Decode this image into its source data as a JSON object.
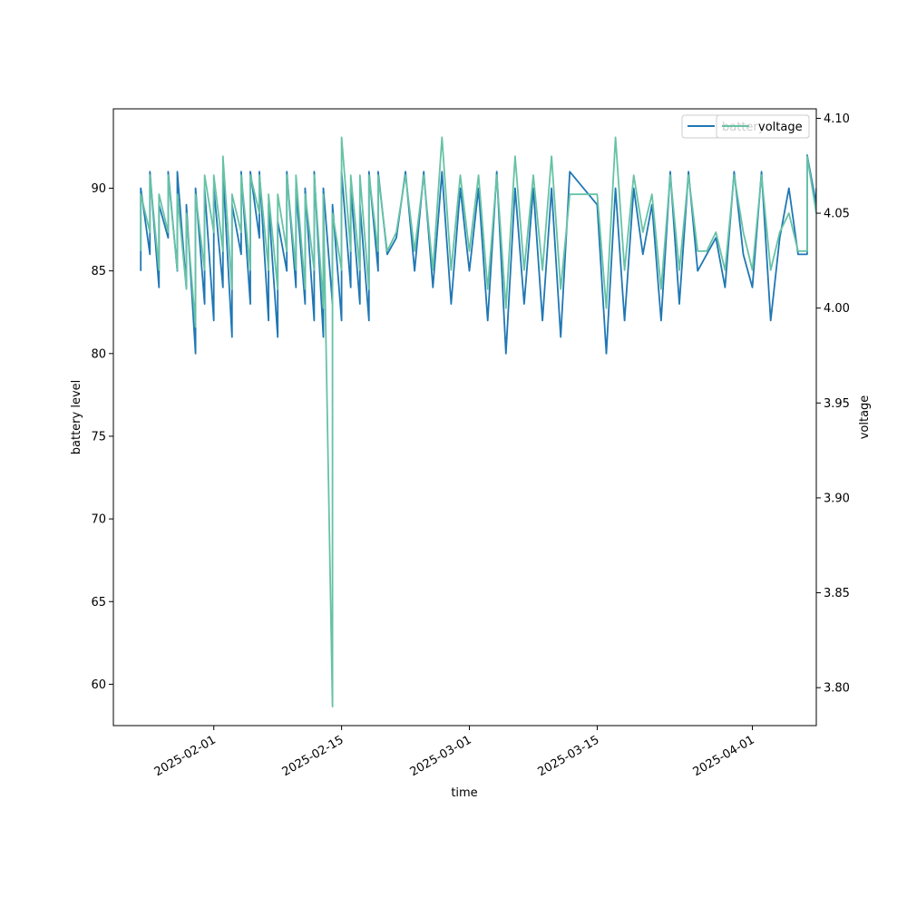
{
  "chart_data": {
    "type": "line",
    "xlabel": "time",
    "ylabel_left": "battery level",
    "ylabel_right": "voltage",
    "x_range": [
      "2025-01-21",
      "2025-04-08"
    ],
    "y_left_range": [
      57.5,
      94.8
    ],
    "y_right_range": [
      3.78,
      4.105
    ],
    "x_ticks": [
      "2025-02-01",
      "2025-02-15",
      "2025-03-01",
      "2025-03-15",
      "2025-04-01"
    ],
    "y_left_ticks": [
      60,
      65,
      70,
      75,
      80,
      85,
      90
    ],
    "y_right_ticks": [
      "3.80",
      "3.85",
      "3.90",
      "3.95",
      "4.00",
      "4.05",
      "4.10"
    ],
    "legend_position": "upper right",
    "series": [
      {
        "name": "battery",
        "axis": "left",
        "color": "#1f77b4",
        "points": [
          [
            "2025-01-24",
            85
          ],
          [
            "2025-01-24",
            90
          ],
          [
            "2025-01-25",
            86
          ],
          [
            "2025-01-25",
            91
          ],
          [
            "2025-01-26",
            84
          ],
          [
            "2025-01-26",
            89
          ],
          [
            "2025-01-27",
            87
          ],
          [
            "2025-01-27",
            91
          ],
          [
            "2025-01-28",
            85
          ],
          [
            "2025-01-28",
            91
          ],
          [
            "2025-01-29",
            84
          ],
          [
            "2025-01-29",
            89
          ],
          [
            "2025-01-30",
            80
          ],
          [
            "2025-01-30",
            90
          ],
          [
            "2025-01-31",
            83
          ],
          [
            "2025-01-31",
            90
          ],
          [
            "2025-02-01",
            82
          ],
          [
            "2025-02-01",
            90
          ],
          [
            "2025-02-02",
            84
          ],
          [
            "2025-02-02",
            91
          ],
          [
            "2025-02-03",
            81
          ],
          [
            "2025-02-03",
            89
          ],
          [
            "2025-02-04",
            86
          ],
          [
            "2025-02-04",
            91
          ],
          [
            "2025-02-05",
            83
          ],
          [
            "2025-02-05",
            91
          ],
          [
            "2025-02-06",
            87
          ],
          [
            "2025-02-06",
            91
          ],
          [
            "2025-02-07",
            82
          ],
          [
            "2025-02-07",
            89
          ],
          [
            "2025-02-08",
            81
          ],
          [
            "2025-02-08",
            88
          ],
          [
            "2025-02-09",
            85
          ],
          [
            "2025-02-09",
            91
          ],
          [
            "2025-02-10",
            84
          ],
          [
            "2025-02-10",
            90
          ],
          [
            "2025-02-11",
            83
          ],
          [
            "2025-02-11",
            90
          ],
          [
            "2025-02-12",
            82
          ],
          [
            "2025-02-12",
            91
          ],
          [
            "2025-02-13",
            81
          ],
          [
            "2025-02-13",
            90
          ],
          [
            "2025-02-14",
            83
          ],
          [
            "2025-02-14",
            89
          ],
          [
            "2025-02-15",
            82
          ],
          [
            "2025-02-15",
            91
          ],
          [
            "2025-02-16",
            84
          ],
          [
            "2025-02-16",
            90
          ],
          [
            "2025-02-17",
            83
          ],
          [
            "2025-02-17",
            89
          ],
          [
            "2025-02-18",
            82
          ],
          [
            "2025-02-18",
            91
          ],
          [
            "2025-02-19",
            85
          ],
          [
            "2025-02-19",
            91
          ],
          [
            "2025-02-20",
            86
          ],
          [
            "2025-02-21",
            87
          ],
          [
            "2025-02-22",
            91
          ],
          [
            "2025-02-23",
            85
          ],
          [
            "2025-02-24",
            91
          ],
          [
            "2025-02-25",
            84
          ],
          [
            "2025-02-26",
            91
          ],
          [
            "2025-02-27",
            83
          ],
          [
            "2025-02-28",
            90
          ],
          [
            "2025-03-01",
            85
          ],
          [
            "2025-03-02",
            90
          ],
          [
            "2025-03-03",
            82
          ],
          [
            "2025-03-04",
            91
          ],
          [
            "2025-03-05",
            80
          ],
          [
            "2025-03-06",
            90
          ],
          [
            "2025-03-07",
            83
          ],
          [
            "2025-03-08",
            90
          ],
          [
            "2025-03-09",
            82
          ],
          [
            "2025-03-10",
            90
          ],
          [
            "2025-03-11",
            81
          ],
          [
            "2025-03-12",
            91
          ],
          [
            "2025-03-15",
            89
          ],
          [
            "2025-03-16",
            80
          ],
          [
            "2025-03-17",
            90
          ],
          [
            "2025-03-18",
            82
          ],
          [
            "2025-03-19",
            90
          ],
          [
            "2025-03-20",
            86
          ],
          [
            "2025-03-21",
            89
          ],
          [
            "2025-03-22",
            82
          ],
          [
            "2025-03-23",
            91
          ],
          [
            "2025-03-24",
            83
          ],
          [
            "2025-03-25",
            91
          ],
          [
            "2025-03-26",
            85
          ],
          [
            "2025-03-27",
            86
          ],
          [
            "2025-03-28",
            87
          ],
          [
            "2025-03-29",
            84
          ],
          [
            "2025-03-30",
            91
          ],
          [
            "2025-03-31",
            86
          ],
          [
            "2025-04-01",
            84
          ],
          [
            "2025-04-02",
            91
          ],
          [
            "2025-04-03",
            82
          ],
          [
            "2025-04-04",
            87
          ],
          [
            "2025-04-05",
            90
          ],
          [
            "2025-04-06",
            86
          ],
          [
            "2025-04-07",
            86
          ],
          [
            "2025-04-07",
            92
          ],
          [
            "2025-04-08",
            89
          ],
          [
            "2025-04-08",
            90
          ]
        ]
      },
      {
        "name": "voltage",
        "axis": "right",
        "color": "#66c2a5",
        "points": [
          [
            "2025-01-24",
            4.03
          ],
          [
            "2025-01-24",
            4.06
          ],
          [
            "2025-01-25",
            4.04
          ],
          [
            "2025-01-25",
            4.07
          ],
          [
            "2025-01-26",
            4.02
          ],
          [
            "2025-01-26",
            4.06
          ],
          [
            "2025-01-27",
            4.04
          ],
          [
            "2025-01-27",
            4.07
          ],
          [
            "2025-01-28",
            4.02
          ],
          [
            "2025-01-28",
            4.06
          ],
          [
            "2025-01-29",
            4.01
          ],
          [
            "2025-01-29",
            4.05
          ],
          [
            "2025-01-30",
            3.99
          ],
          [
            "2025-01-30",
            4.06
          ],
          [
            "2025-01-31",
            4.02
          ],
          [
            "2025-01-31",
            4.07
          ],
          [
            "2025-02-01",
            4.04
          ],
          [
            "2025-02-01",
            4.07
          ],
          [
            "2025-02-02",
            4.03
          ],
          [
            "2025-02-02",
            4.08
          ],
          [
            "2025-02-03",
            4.01
          ],
          [
            "2025-02-03",
            4.06
          ],
          [
            "2025-02-04",
            4.04
          ],
          [
            "2025-02-04",
            4.07
          ],
          [
            "2025-02-05",
            4.02
          ],
          [
            "2025-02-05",
            4.07
          ],
          [
            "2025-02-06",
            4.05
          ],
          [
            "2025-02-06",
            4.07
          ],
          [
            "2025-02-07",
            4.02
          ],
          [
            "2025-02-07",
            4.06
          ],
          [
            "2025-02-08",
            4.01
          ],
          [
            "2025-02-08",
            4.06
          ],
          [
            "2025-02-09",
            4.03
          ],
          [
            "2025-02-09",
            4.07
          ],
          [
            "2025-02-10",
            4.02
          ],
          [
            "2025-02-10",
            4.07
          ],
          [
            "2025-02-11",
            4.01
          ],
          [
            "2025-02-11",
            4.06
          ],
          [
            "2025-02-12",
            4.02
          ],
          [
            "2025-02-12",
            4.07
          ],
          [
            "2025-02-13",
            4.0
          ],
          [
            "2025-02-13",
            4.06
          ],
          [
            "2025-02-14",
            3.79
          ],
          [
            "2025-02-14",
            4.05
          ],
          [
            "2025-02-15",
            4.02
          ],
          [
            "2025-02-15",
            4.09
          ],
          [
            "2025-02-16",
            4.03
          ],
          [
            "2025-02-16",
            4.07
          ],
          [
            "2025-02-17",
            4.02
          ],
          [
            "2025-02-17",
            4.07
          ],
          [
            "2025-02-18",
            4.01
          ],
          [
            "2025-02-18",
            4.07
          ],
          [
            "2025-02-19",
            4.03
          ],
          [
            "2025-02-19",
            4.07
          ],
          [
            "2025-02-20",
            4.03
          ],
          [
            "2025-02-21",
            4.04
          ],
          [
            "2025-02-22",
            4.07
          ],
          [
            "2025-02-23",
            4.03
          ],
          [
            "2025-02-24",
            4.07
          ],
          [
            "2025-02-25",
            4.02
          ],
          [
            "2025-02-26",
            4.09
          ],
          [
            "2025-02-27",
            4.02
          ],
          [
            "2025-02-28",
            4.07
          ],
          [
            "2025-03-01",
            4.03
          ],
          [
            "2025-03-02",
            4.07
          ],
          [
            "2025-03-03",
            4.01
          ],
          [
            "2025-03-04",
            4.07
          ],
          [
            "2025-03-05",
            4.0
          ],
          [
            "2025-03-06",
            4.08
          ],
          [
            "2025-03-07",
            4.02
          ],
          [
            "2025-03-08",
            4.07
          ],
          [
            "2025-03-09",
            4.02
          ],
          [
            "2025-03-10",
            4.08
          ],
          [
            "2025-03-11",
            4.01
          ],
          [
            "2025-03-12",
            4.06
          ],
          [
            "2025-03-15",
            4.06
          ],
          [
            "2025-03-16",
            4.0
          ],
          [
            "2025-03-17",
            4.09
          ],
          [
            "2025-03-18",
            4.02
          ],
          [
            "2025-03-19",
            4.07
          ],
          [
            "2025-03-20",
            4.04
          ],
          [
            "2025-03-21",
            4.06
          ],
          [
            "2025-03-22",
            4.01
          ],
          [
            "2025-03-23",
            4.07
          ],
          [
            "2025-03-24",
            4.02
          ],
          [
            "2025-03-25",
            4.07
          ],
          [
            "2025-03-26",
            4.03
          ],
          [
            "2025-03-27",
            4.03
          ],
          [
            "2025-03-28",
            4.04
          ],
          [
            "2025-03-29",
            4.02
          ],
          [
            "2025-03-30",
            4.07
          ],
          [
            "2025-03-31",
            4.04
          ],
          [
            "2025-04-01",
            4.02
          ],
          [
            "2025-04-02",
            4.07
          ],
          [
            "2025-04-03",
            4.02
          ],
          [
            "2025-04-04",
            4.04
          ],
          [
            "2025-04-05",
            4.05
          ],
          [
            "2025-04-06",
            4.03
          ],
          [
            "2025-04-07",
            4.03
          ],
          [
            "2025-04-07",
            4.08
          ],
          [
            "2025-04-08",
            4.05
          ],
          [
            "2025-04-08",
            4.05
          ]
        ]
      }
    ]
  }
}
